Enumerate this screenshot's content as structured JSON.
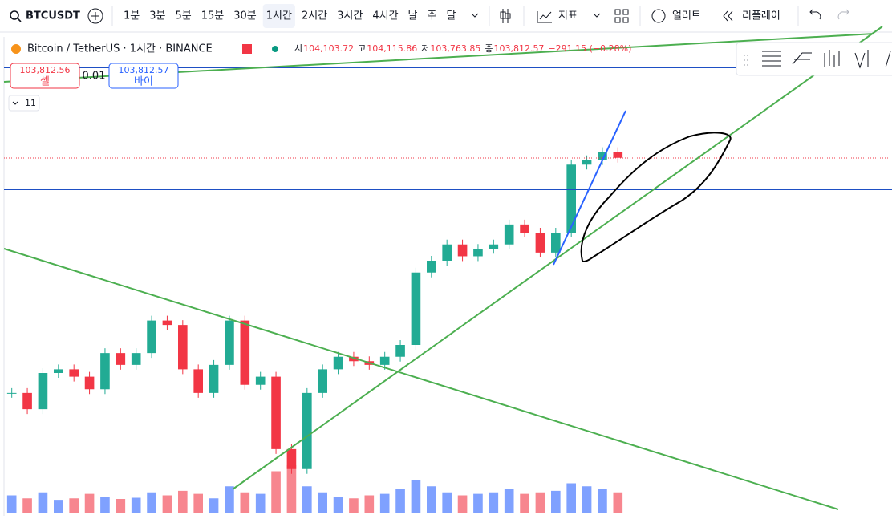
{
  "toolbar": {
    "symbol": "BTCUSDT",
    "intervals": [
      "1분",
      "3분",
      "5분",
      "15분",
      "30분",
      "1시간",
      "2시간",
      "3시간",
      "4시간",
      "날",
      "주",
      "달"
    ],
    "active_interval": 5,
    "indicators": "지표",
    "alerts": "얼러트",
    "replay": "리플레이"
  },
  "legend": {
    "title": "Bitcoin / TetherUS · 1시간 · BINANCE",
    "open_label": "시",
    "open": "104,103.72",
    "high_label": "고",
    "high": "104,115.86",
    "low_label": "저",
    "low": "103,763.85",
    "close_label": "종",
    "close": "103,812.57",
    "change": "−291.15 (−0.28%)"
  },
  "trade": {
    "sell_price": "103,812.56",
    "sell_label": "셀",
    "spread": "0.01",
    "buy_price": "103,812.57",
    "buy_label": "바이"
  },
  "indicators_count": "11",
  "chart_data": {
    "type": "candlestick",
    "closes": [
      100630,
      100410,
      100900,
      100950,
      100850,
      100680,
      101170,
      101010,
      101170,
      101610,
      101550,
      100950,
      100630,
      101010,
      101610,
      100740,
      100850,
      99870,
      99600,
      100630,
      100950,
      101120,
      101060,
      101010,
      101120,
      101280,
      102260,
      102420,
      102640,
      102480,
      102580,
      102640,
      102910,
      102800,
      102530,
      102800,
      103720,
      103780,
      103890,
      103812.57
    ],
    "volumes": [
      600,
      500,
      700,
      450,
      500,
      650,
      550,
      480,
      520,
      700,
      600,
      750,
      650,
      500,
      900,
      700,
      650,
      1400,
      1600,
      900,
      700,
      550,
      500,
      600,
      650,
      800,
      1100,
      900,
      700,
      600,
      650,
      700,
      800,
      650,
      700,
      750,
      1000,
      900,
      800,
      700
    ],
    "ylim": [
      99000,
      105460
    ],
    "up_color": "#22ab94",
    "down_color": "#f23645",
    "up_volume_color": "#2962ff",
    "down_volume_color": "#f23645"
  }
}
